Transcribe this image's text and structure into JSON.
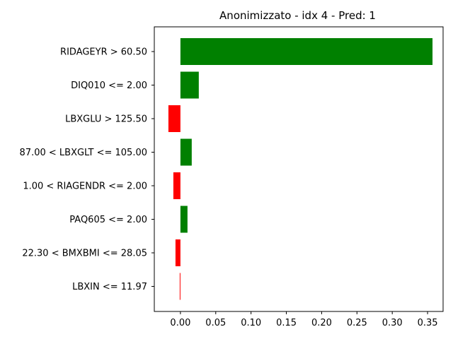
{
  "chart_data": {
    "type": "bar",
    "orientation": "horizontal",
    "title": "Anonimizzato - idx 4 - Pred: 1",
    "xlabel": "",
    "ylabel": "",
    "xlim": [
      -0.037,
      0.372
    ],
    "xticks": [
      "0.00",
      "0.05",
      "0.10",
      "0.15",
      "0.20",
      "0.25",
      "0.30",
      "0.35"
    ],
    "xtick_values": [
      0,
      0.05,
      0.1,
      0.15,
      0.2,
      0.25,
      0.3,
      0.35
    ],
    "categories": [
      "RIDAGEYR > 60.50",
      "DIQ010 <= 2.00",
      "LBXGLU > 125.50",
      "87.00 < LBXGLT <= 105.00",
      "1.00 < RIAGENDR <= 2.00",
      "PAQ605 <= 2.00",
      "22.30 < BMXBMI <= 28.05",
      "LBXIN <= 11.97"
    ],
    "values": [
      0.357,
      0.026,
      -0.017,
      0.016,
      -0.01,
      0.01,
      -0.007,
      -0.001
    ],
    "colors": {
      "positive": "#008000",
      "negative": "#ff0000"
    },
    "grid": false,
    "legend": "none"
  }
}
